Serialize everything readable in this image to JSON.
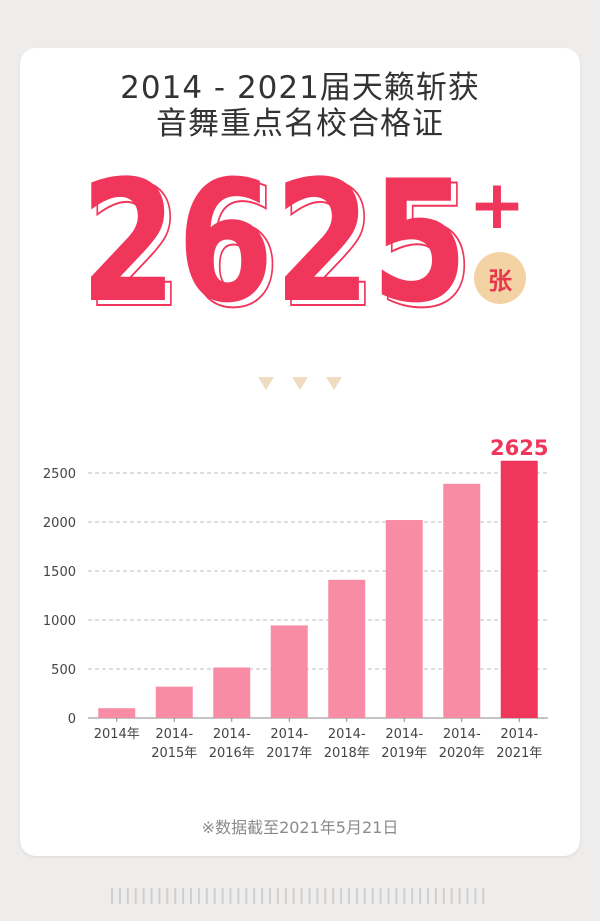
{
  "header": {
    "title_line1": "2014 - 2021届天籁斩获",
    "title_line2": "音舞重点名校合格证"
  },
  "hero": {
    "number": "2625",
    "plus": "+",
    "unit": "张"
  },
  "colors": {
    "accent": "#f0365a",
    "bar": "#f98ca5",
    "badge": "#f3d2a3",
    "arrow": "#f0dcc0"
  },
  "chart_data": {
    "type": "bar",
    "categories": [
      "2014年",
      "2014-\n2015年",
      "2014-\n2016年",
      "2014-\n2017年",
      "2014-\n2018年",
      "2014-\n2019年",
      "2014-\n2020年",
      "2014-\n2021年"
    ],
    "values": [
      100,
      320,
      515,
      945,
      1410,
      2020,
      2390,
      2625
    ],
    "highlight_label": "2625",
    "yticks": [
      0,
      500,
      1000,
      1500,
      2000,
      2500
    ],
    "ylim": [
      0,
      2700
    ],
    "grid": true
  },
  "footer": {
    "note": "※数据截至2021年5月21日"
  }
}
